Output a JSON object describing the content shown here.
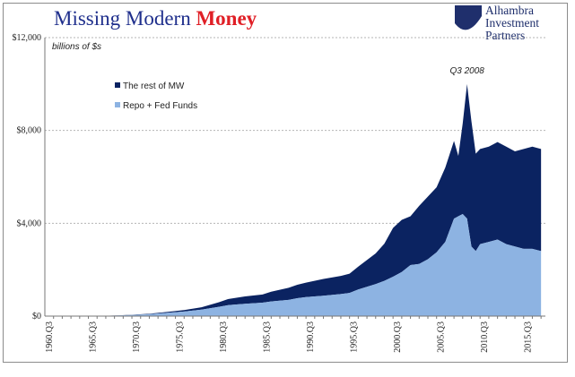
{
  "title": {
    "main": "Missing Modern ",
    "accent": "Money"
  },
  "logo": {
    "lines": [
      "Alhambra",
      "Investment",
      "Partners"
    ],
    "icon": "alhambra-logo-icon"
  },
  "colors": {
    "title": "#1f2f8c",
    "accent": "#e01f26",
    "rest": "#0b2361",
    "repo": "#8db3e2"
  },
  "chart_data": {
    "type": "area",
    "stacked": true,
    "ylabel": "billions of $s",
    "ylim": [
      0,
      12000
    ],
    "yticks": [
      0,
      4000,
      8000,
      12000
    ],
    "ytick_labels": [
      "$0",
      "$4,000",
      "$8,000",
      "$12,000"
    ],
    "xlim": [
      1960.0,
      2017.5
    ],
    "xtick_labels": [
      "1960.Q3",
      "1965.Q3",
      "1970.Q3",
      "1975.Q3",
      "1980.Q3",
      "1985.Q3",
      "1990.Q3",
      "1995.Q3",
      "2000.Q3",
      "2005.Q3",
      "2010.Q3",
      "2015.Q3"
    ],
    "xtick_values": [
      1960.5,
      1965.5,
      1970.5,
      1975.5,
      1980.5,
      1985.5,
      1990.5,
      1995.5,
      2000.5,
      2005.5,
      2010.5,
      2015.5
    ],
    "grid": true,
    "legend_position": "top-left",
    "annotation": {
      "text": "Q3 2008",
      "x": 2008.5,
      "y": 10300
    },
    "x": [
      1960.5,
      1965,
      1968,
      1970,
      1972,
      1974,
      1976,
      1978,
      1980,
      1981,
      1983,
      1985,
      1986,
      1988,
      1989,
      1990,
      1992,
      1994,
      1995,
      1996,
      1998,
      1999,
      2000,
      2001,
      2002,
      2003,
      2004,
      2005,
      2006,
      2007,
      2007.5,
      2008,
      2008.5,
      2009,
      2009.5,
      2010,
      2011,
      2012,
      2013,
      2014,
      2015,
      2016,
      2017
    ],
    "series": [
      {
        "name": "The rest of MW",
        "values": [
          0,
          0,
          5,
          10,
          20,
          40,
          60,
          100,
          200,
          260,
          320,
          350,
          420,
          520,
          580,
          620,
          720,
          780,
          830,
          980,
          1320,
          1600,
          2100,
          2250,
          2100,
          2500,
          2700,
          2800,
          3200,
          3350,
          2600,
          3900,
          5800,
          5400,
          4200,
          4100,
          4100,
          4200,
          4200,
          4100,
          4300,
          4400,
          4400
        ]
      },
      {
        "name": "Repo + Fed Funds",
        "values": [
          0,
          0,
          20,
          50,
          80,
          140,
          200,
          280,
          400,
          470,
          530,
          580,
          630,
          700,
          770,
          820,
          880,
          950,
          1000,
          1150,
          1380,
          1520,
          1700,
          1900,
          2200,
          2250,
          2450,
          2750,
          3200,
          4200,
          4300,
          4400,
          4200,
          3000,
          2800,
          3100,
          3200,
          3300,
          3100,
          3000,
          2900,
          2900,
          2800
        ]
      }
    ]
  }
}
